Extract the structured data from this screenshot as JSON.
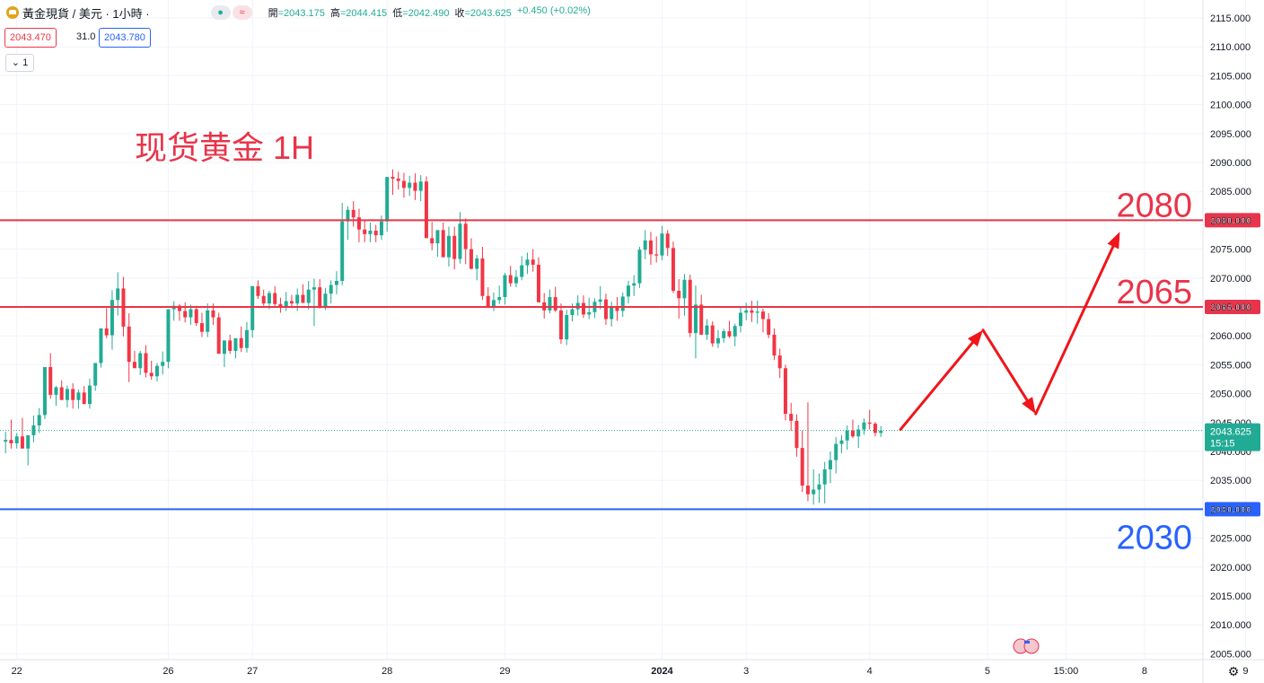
{
  "header": {
    "symbol_title": "黃金現貨 / 美元 · 1小時 ·",
    "status_green": "●",
    "status_red": "≈",
    "ohlc": {
      "open_label": "開",
      "open": "=2043.175",
      "high_label": "高",
      "high": "=2044.415",
      "low_label": "低",
      "low": "=2042.490",
      "close_label": "收",
      "close": "=2043.625",
      "change": "+0.450 (+0.02%)"
    },
    "sell_price": "2043.470",
    "spread": "31.0",
    "buy_price": "2043.780",
    "collapse_label": "1"
  },
  "colors": {
    "up": "#22ab94",
    "down": "#f23645",
    "resistance": "#e8344a",
    "support": "#2962ff",
    "arrow": "#f0151a",
    "grid": "#f0f3fa"
  },
  "chart_data": {
    "type": "candlestick",
    "title": "现货黄金 1H",
    "ylim": [
      2004,
      2118
    ],
    "y_ticks": [
      "2115.000",
      "2110.000",
      "2105.000",
      "2100.000",
      "2095.000",
      "2090.000",
      "2085.000",
      "2080.000",
      "2075.000",
      "2070.000",
      "2065.000",
      "2060.000",
      "2055.000",
      "2050.000",
      "2045.000",
      "2040.000",
      "2035.000",
      "2030.000",
      "2025.000",
      "2020.000",
      "2015.000",
      "2010.000",
      "2005.000"
    ],
    "x_ticks": [
      {
        "label": "22",
        "bar": 2
      },
      {
        "label": "26",
        "bar": 29
      },
      {
        "label": "27",
        "bar": 44
      },
      {
        "label": "28",
        "bar": 68
      },
      {
        "label": "29",
        "bar": 89
      },
      {
        "label": "2024",
        "bar": 117
      },
      {
        "label": "3",
        "bar": 132
      },
      {
        "label": "4",
        "bar": 154
      },
      {
        "label": "5",
        "bar": 175
      },
      {
        "label": "15:00",
        "bar": 189
      },
      {
        "label": "8",
        "bar": 203
      },
      {
        "label": "9",
        "bar": 221
      }
    ],
    "candles_ohlc": [
      [
        2041.7,
        2043.4,
        2039.7,
        2042.0
      ],
      [
        2042.0,
        2045.5,
        2040.5,
        2041.4
      ],
      [
        2041.4,
        2043.2,
        2040.5,
        2042.6
      ],
      [
        2042.6,
        2045.8,
        2041.3,
        2040.5
      ],
      [
        2040.5,
        2042.2,
        2037.6,
        2042.8
      ],
      [
        2042.8,
        2046.2,
        2041.6,
        2044.5
      ],
      [
        2044.5,
        2047.5,
        2043.2,
        2046.3
      ],
      [
        2046.3,
        2049.2,
        2045.6,
        2054.6
      ],
      [
        2054.6,
        2057.0,
        2049.1,
        2049.8
      ],
      [
        2049.8,
        2051.3,
        2047.9,
        2051.1
      ],
      [
        2051.1,
        2052.3,
        2049.5,
        2048.9
      ],
      [
        2048.9,
        2051.4,
        2047.6,
        2050.8
      ],
      [
        2050.8,
        2051.8,
        2047.4,
        2048.9
      ],
      [
        2048.9,
        2050.7,
        2047.4,
        2050.2
      ],
      [
        2050.2,
        2051.3,
        2048.2,
        2048.2
      ],
      [
        2048.2,
        2052.6,
        2047.4,
        2051.4
      ],
      [
        2051.4,
        2053.4,
        2050.5,
        2055.3
      ],
      [
        2055.3,
        2058.3,
        2054.5,
        2061.3
      ],
      [
        2061.3,
        2064.8,
        2059.6,
        2060.1
      ],
      [
        2060.1,
        2067.9,
        2057.6,
        2066.2
      ],
      [
        2066.2,
        2071.0,
        2063.5,
        2068.2
      ],
      [
        2068.2,
        2070.2,
        2059.9,
        2061.6
      ],
      [
        2061.6,
        2063.9,
        2052.0,
        2055.5
      ],
      [
        2055.5,
        2057.4,
        2054.4,
        2054.4
      ],
      [
        2054.4,
        2057.4,
        2053.2,
        2057.0
      ],
      [
        2057.0,
        2058.4,
        2052.8,
        2053.6
      ],
      [
        2053.6,
        2055.7,
        2052.4,
        2053.0
      ],
      [
        2053.0,
        2055.3,
        2052.1,
        2054.8
      ],
      [
        2054.8,
        2057.3,
        2053.3,
        2055.5
      ],
      [
        2055.5,
        2057.5,
        2054.4,
        2064.6
      ],
      [
        2064.6,
        2066.0,
        2062.6,
        2065.2
      ],
      [
        2065.2,
        2065.5,
        2062.6,
        2064.3
      ],
      [
        2064.3,
        2065.8,
        2062.3,
        2063.2
      ],
      [
        2063.2,
        2065.4,
        2061.9,
        2064.6
      ],
      [
        2064.6,
        2065.2,
        2061.7,
        2062.2
      ],
      [
        2062.2,
        2064.0,
        2059.8,
        2060.7
      ],
      [
        2060.7,
        2065.6,
        2059.8,
        2064.4
      ],
      [
        2064.4,
        2065.6,
        2061.9,
        2063.2
      ],
      [
        2063.2,
        2064.0,
        2059.4,
        2056.9
      ],
      [
        2056.9,
        2059.2,
        2054.6,
        2059.2
      ],
      [
        2059.2,
        2060.2,
        2056.9,
        2057.4
      ],
      [
        2057.4,
        2058.8,
        2056.1,
        2059.6
      ],
      [
        2059.6,
        2061.6,
        2057.2,
        2057.9
      ],
      [
        2057.9,
        2062.4,
        2057.1,
        2061.0
      ],
      [
        2061.0,
        2068.6,
        2059.7,
        2068.6
      ],
      [
        2068.6,
        2069.6,
        2066.4,
        2066.9
      ],
      [
        2066.9,
        2068.0,
        2065.2,
        2065.6
      ],
      [
        2065.6,
        2067.8,
        2064.6,
        2067.4
      ],
      [
        2067.4,
        2068.6,
        2065.0,
        2065.5
      ],
      [
        2065.5,
        2066.6,
        2064.0,
        2065.1
      ],
      [
        2065.1,
        2067.6,
        2064.3,
        2066.0
      ],
      [
        2066.0,
        2067.1,
        2064.8,
        2065.6
      ],
      [
        2065.6,
        2068.2,
        2064.3,
        2067.1
      ],
      [
        2067.1,
        2068.9,
        2065.8,
        2065.7
      ],
      [
        2065.7,
        2069.5,
        2064.6,
        2068.0
      ],
      [
        2068.0,
        2069.9,
        2061.7,
        2068.4
      ],
      [
        2068.4,
        2069.8,
        2064.7,
        2065.0
      ],
      [
        2065.0,
        2068.3,
        2064.5,
        2067.3
      ],
      [
        2067.3,
        2069.6,
        2065.6,
        2068.8
      ],
      [
        2068.8,
        2071.2,
        2067.2,
        2069.5
      ],
      [
        2069.5,
        2083.0,
        2068.8,
        2079.8
      ],
      [
        2079.8,
        2082.4,
        2076.6,
        2081.8
      ],
      [
        2081.8,
        2083.3,
        2078.9,
        2080.5
      ],
      [
        2080.5,
        2082.0,
        2076.2,
        2078.4
      ],
      [
        2078.4,
        2080.0,
        2076.2,
        2077.6
      ],
      [
        2077.6,
        2079.6,
        2076.2,
        2078.2
      ],
      [
        2078.2,
        2079.2,
        2076.2,
        2077.4
      ],
      [
        2077.4,
        2080.8,
        2076.6,
        2079.8
      ],
      [
        2079.8,
        2082.2,
        2078.0,
        2087.5
      ],
      [
        2087.5,
        2088.8,
        2084.4,
        2087.2
      ],
      [
        2087.2,
        2088.4,
        2085.3,
        2086.8
      ],
      [
        2086.8,
        2088.2,
        2083.9,
        2085.6
      ],
      [
        2085.6,
        2087.7,
        2084.2,
        2086.5
      ],
      [
        2086.5,
        2088.1,
        2083.5,
        2085.1
      ],
      [
        2085.1,
        2087.8,
        2083.3,
        2086.7
      ],
      [
        2086.7,
        2087.6,
        2084.0,
        2076.9
      ],
      [
        2076.9,
        2079.7,
        2074.8,
        2076.0
      ],
      [
        2076.0,
        2077.5,
        2073.7,
        2078.3
      ],
      [
        2078.3,
        2079.6,
        2073.8,
        2073.6
      ],
      [
        2073.6,
        2078.9,
        2072.0,
        2077.3
      ],
      [
        2077.3,
        2078.9,
        2071.5,
        2073.3
      ],
      [
        2073.3,
        2081.4,
        2072.5,
        2079.4
      ],
      [
        2079.4,
        2080.3,
        2072.4,
        2075.0
      ],
      [
        2075.0,
        2076.9,
        2071.5,
        2071.6
      ],
      [
        2071.6,
        2074.0,
        2069.6,
        2073.4
      ],
      [
        2073.4,
        2075.4,
        2066.2,
        2066.9
      ],
      [
        2066.9,
        2068.4,
        2064.8,
        2065.1
      ],
      [
        2065.1,
        2067.5,
        2064.3,
        2066.2
      ],
      [
        2066.2,
        2068.7,
        2065.5,
        2066.7
      ],
      [
        2066.7,
        2070.9,
        2065.4,
        2070.5
      ],
      [
        2070.5,
        2072.1,
        2068.5,
        2069.1
      ],
      [
        2069.1,
        2071.4,
        2068.4,
        2070.2
      ],
      [
        2070.2,
        2073.8,
        2069.6,
        2072.2
      ],
      [
        2072.2,
        2074.4,
        2070.7,
        2073.2
      ],
      [
        2073.2,
        2075.0,
        2071.1,
        2072.3
      ],
      [
        2072.3,
        2073.6,
        2066.4,
        2065.8
      ],
      [
        2065.8,
        2067.4,
        2063.0,
        2064.4
      ],
      [
        2064.4,
        2068.0,
        2063.9,
        2066.7
      ],
      [
        2066.7,
        2068.5,
        2064.1,
        2064.4
      ],
      [
        2064.4,
        2065.6,
        2058.6,
        2059.4
      ],
      [
        2059.4,
        2064.5,
        2058.4,
        2063.6
      ],
      [
        2063.6,
        2065.6,
        2062.5,
        2064.6
      ],
      [
        2064.6,
        2067.0,
        2063.5,
        2065.7
      ],
      [
        2065.7,
        2067.0,
        2063.1,
        2063.7
      ],
      [
        2063.7,
        2066.6,
        2062.9,
        2064.1
      ],
      [
        2064.1,
        2066.5,
        2063.1,
        2065.9
      ],
      [
        2065.9,
        2068.6,
        2064.6,
        2066.3
      ],
      [
        2066.3,
        2067.3,
        2061.9,
        2062.9
      ],
      [
        2062.9,
        2065.9,
        2061.6,
        2065.1
      ],
      [
        2065.1,
        2066.7,
        2062.6,
        2064.3
      ],
      [
        2064.3,
        2067.5,
        2063.3,
        2066.8
      ],
      [
        2066.8,
        2069.5,
        2065.6,
        2068.7
      ],
      [
        2068.7,
        2070.5,
        2066.9,
        2069.1
      ],
      [
        2069.1,
        2075.4,
        2068.3,
        2074.9
      ],
      [
        2074.9,
        2078.3,
        2073.3,
        2076.5
      ],
      [
        2076.5,
        2078.0,
        2072.3,
        2074.1
      ],
      [
        2074.1,
        2077.2,
        2072.7,
        2073.9
      ],
      [
        2073.9,
        2079.0,
        2073.1,
        2077.7
      ],
      [
        2077.7,
        2078.3,
        2073.8,
        2075.2
      ],
      [
        2075.2,
        2076.3,
        2067.4,
        2067.8
      ],
      [
        2067.8,
        2069.8,
        2063.0,
        2066.5
      ],
      [
        2066.5,
        2070.7,
        2063.5,
        2069.7
      ],
      [
        2069.7,
        2070.6,
        2059.8,
        2060.5
      ],
      [
        2060.5,
        2068.7,
        2056.1,
        2065.4
      ],
      [
        2065.4,
        2067.1,
        2060.2,
        2060.2
      ],
      [
        2060.2,
        2062.9,
        2059.3,
        2061.8
      ],
      [
        2061.8,
        2062.5,
        2058.1,
        2058.7
      ],
      [
        2058.7,
        2061.0,
        2057.9,
        2059.6
      ],
      [
        2059.6,
        2061.2,
        2058.8,
        2060.8
      ],
      [
        2060.8,
        2062.6,
        2059.6,
        2059.9
      ],
      [
        2059.9,
        2062.1,
        2058.2,
        2061.7
      ],
      [
        2061.7,
        2064.9,
        2060.6,
        2064.0
      ],
      [
        2064.0,
        2065.7,
        2062.7,
        2064.4
      ],
      [
        2064.4,
        2066.1,
        2062.4,
        2064.0
      ],
      [
        2064.0,
        2066.1,
        2062.1,
        2064.2
      ],
      [
        2064.2,
        2064.7,
        2060.6,
        2062.9
      ],
      [
        2062.9,
        2063.9,
        2059.6,
        2060.2
      ],
      [
        2060.2,
        2061.3,
        2055.8,
        2056.6
      ],
      [
        2056.6,
        2057.8,
        2052.7,
        2054.4
      ],
      [
        2054.4,
        2055.0,
        2045.4,
        2046.5
      ],
      [
        2046.5,
        2048.4,
        2043.6,
        2045.3
      ],
      [
        2045.3,
        2046.4,
        2039.1,
        2040.6
      ],
      [
        2040.6,
        2043.6,
        2033.0,
        2034.1
      ],
      [
        2034.1,
        2048.5,
        2031.4,
        2032.6
      ],
      [
        2032.6,
        2036.9,
        2030.8,
        2033.4
      ],
      [
        2033.4,
        2036.2,
        2031.1,
        2034.3
      ],
      [
        2034.3,
        2038.2,
        2031.0,
        2036.9
      ],
      [
        2036.9,
        2040.0,
        2034.5,
        2038.5
      ],
      [
        2038.5,
        2042.5,
        2036.2,
        2041.3
      ],
      [
        2041.3,
        2042.8,
        2039.7,
        2041.9
      ],
      [
        2041.9,
        2044.5,
        2040.3,
        2043.6
      ],
      [
        2043.6,
        2045.5,
        2042.3,
        2042.6
      ],
      [
        2042.6,
        2044.6,
        2040.6,
        2043.8
      ],
      [
        2043.8,
        2045.7,
        2042.9,
        2045.0
      ],
      [
        2045.0,
        2047.2,
        2043.8,
        2044.8
      ],
      [
        2044.8,
        2045.1,
        2042.6,
        2043.2
      ],
      [
        2043.2,
        2044.4,
        2042.5,
        2043.6
      ]
    ],
    "current_price": "2043.625",
    "countdown": "15:15",
    "levels": [
      {
        "value": 2080,
        "tag": "2080.000",
        "big_label": "2080",
        "color": "#e8344a"
      },
      {
        "value": 2065,
        "tag": "2065.000",
        "big_label": "2065",
        "color": "#e8344a"
      },
      {
        "value": 2030,
        "tag": "2030.000",
        "big_label": "2030",
        "color": "#2962ff"
      }
    ],
    "forecast_path": [
      {
        "bar": 159.5,
        "price": 2043.8
      },
      {
        "bar": 174.2,
        "price": 2061.0
      },
      {
        "bar": 183.6,
        "price": 2046.5
      },
      {
        "bar": 198.6,
        "price": 2078.0
      }
    ]
  }
}
